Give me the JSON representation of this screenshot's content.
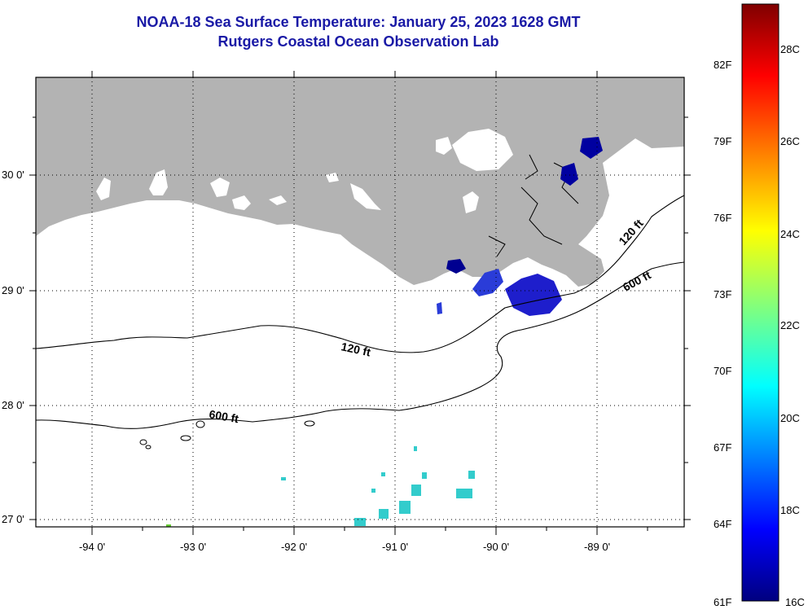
{
  "header": {
    "title": "NOAA-18 Sea Surface Temperature:  January 25, 2023 1628 GMT",
    "subtitle": "Rutgers Coastal Ocean Observation Lab"
  },
  "axes": {
    "lat_labels": [
      "30 0'",
      "29 0'",
      "28 0'",
      "27 0'"
    ],
    "lon_labels": [
      "-94 0'",
      "-93 0'",
      "-92 0'",
      "-91 0'",
      "-90 0'",
      "-89 0'"
    ]
  },
  "contours": {
    "c120_label": "120 ft",
    "c600_label": "600 ft"
  },
  "colorbar": {
    "f_labels": [
      "82F",
      "79F",
      "76F",
      "73F",
      "70F",
      "67F",
      "64F",
      "61F"
    ],
    "c_labels": [
      "28C",
      "26C",
      "24C",
      "22C",
      "20C",
      "18C",
      "16C"
    ]
  },
  "colors": {
    "land": "#b3b3b3",
    "ocean": "#ffffff",
    "title": "#1a1aa6",
    "contour": "#000000"
  }
}
